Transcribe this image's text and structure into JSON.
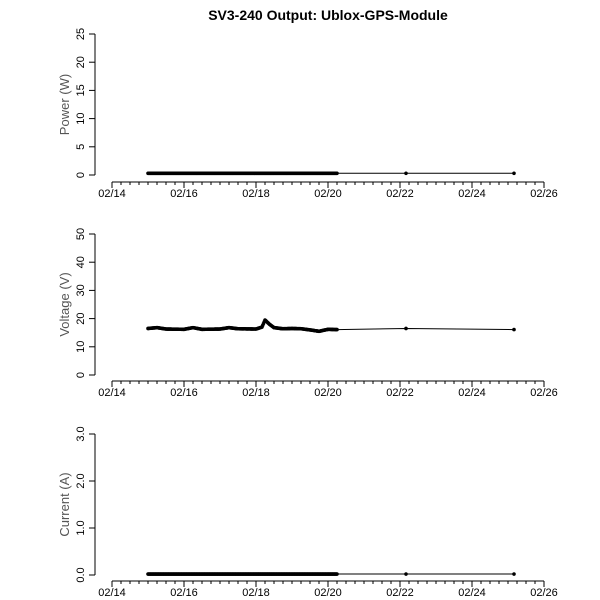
{
  "title": "SV3-240 Output: Ublox-GPS-Module",
  "chart_data": [
    {
      "type": "line",
      "ylabel": "Power (W)",
      "ylim": [
        0,
        25
      ],
      "yticks": [
        "0",
        "5",
        "10",
        "15",
        "20",
        "25"
      ],
      "xlim": [
        "02/14",
        "02/26"
      ],
      "xticks": [
        "02/14",
        "02/16",
        "02/18",
        "02/20",
        "02/22",
        "02/24",
        "02/26"
      ],
      "x": [
        "02/15 00:00",
        "02/15 12:00",
        "02/16 00:00",
        "02/16 12:00",
        "02/17 00:00",
        "02/17 12:00",
        "02/18 00:00",
        "02/18 06:00",
        "02/18 12:00",
        "02/19 00:00",
        "02/19 12:00",
        "02/20 00:00",
        "02/20 06:00",
        "02/22 04:00",
        "02/25 04:00"
      ],
      "y": [
        0.3,
        0.3,
        0.3,
        0.3,
        0.3,
        0.3,
        0.3,
        0.3,
        0.3,
        0.3,
        0.3,
        0.3,
        0.3,
        0.3,
        0.3
      ]
    },
    {
      "type": "line",
      "ylabel": "Voltage (V)",
      "ylim": [
        0,
        50
      ],
      "yticks": [
        "0",
        "10",
        "20",
        "30",
        "40",
        "50"
      ],
      "xlim": [
        "02/14",
        "02/26"
      ],
      "xticks": [
        "02/14",
        "02/16",
        "02/18",
        "02/20",
        "02/22",
        "02/24",
        "02/26"
      ],
      "x": [
        "02/15 00:00",
        "02/15 06:00",
        "02/15 12:00",
        "02/16 00:00",
        "02/16 06:00",
        "02/16 12:00",
        "02/17 00:00",
        "02/17 06:00",
        "02/17 12:00",
        "02/18 00:00",
        "02/18 04:00",
        "02/18 06:00",
        "02/18 09:00",
        "02/18 12:00",
        "02/18 18:00",
        "02/19 00:00",
        "02/19 06:00",
        "02/19 12:00",
        "02/19 18:00",
        "02/20 00:00",
        "02/20 06:00",
        "02/22 04:00",
        "02/25 04:00"
      ],
      "y": [
        16.5,
        16.8,
        16.3,
        16.2,
        16.8,
        16.2,
        16.3,
        16.8,
        16.4,
        16.3,
        17.0,
        19.5,
        18.0,
        16.8,
        16.4,
        16.5,
        16.4,
        16.0,
        15.5,
        16.2,
        16.1,
        16.5,
        16.1
      ]
    },
    {
      "type": "line",
      "ylabel": "Current (A)",
      "ylim": [
        0,
        3
      ],
      "yticks": [
        "0.0",
        "1.0",
        "2.0",
        "3.0"
      ],
      "xlim": [
        "02/14",
        "02/26"
      ],
      "xticks": [
        "02/14",
        "02/16",
        "02/18",
        "02/20",
        "02/22",
        "02/24",
        "02/26"
      ],
      "x": [
        "02/15 00:00",
        "02/15 12:00",
        "02/16 00:00",
        "02/16 12:00",
        "02/17 00:00",
        "02/17 12:00",
        "02/18 00:00",
        "02/18 06:00",
        "02/18 12:00",
        "02/19 00:00",
        "02/19 12:00",
        "02/20 00:00",
        "02/20 06:00",
        "02/22 04:00",
        "02/25 04:00"
      ],
      "y": [
        0.02,
        0.02,
        0.02,
        0.02,
        0.02,
        0.02,
        0.02,
        0.02,
        0.02,
        0.02,
        0.02,
        0.02,
        0.02,
        0.02,
        0.02
      ]
    }
  ]
}
